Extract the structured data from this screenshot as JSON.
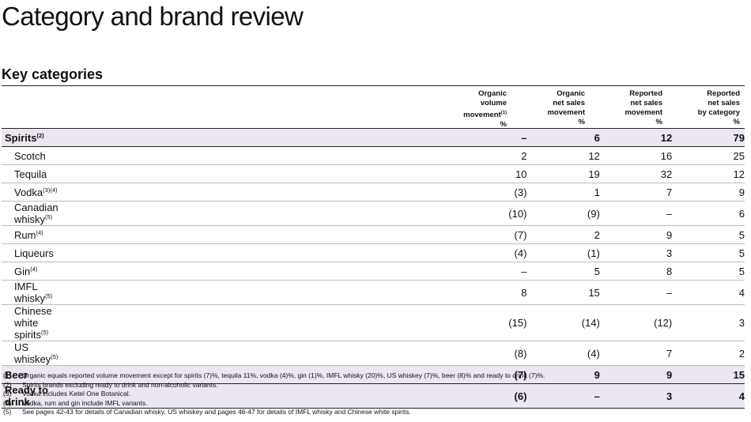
{
  "page_title": "Category and brand review",
  "section_title": "Key categories",
  "columns": [
    "Organic\nvolume\nmovement",
    "Organic\nnet sales\nmovement\n%",
    "Reported\nnet sales\nmovement\n%",
    "Reported\nnet sales\nby category\n%"
  ],
  "col1_note": "(1)",
  "col1_pct": "%",
  "rows": [
    {
      "label": "Spirits",
      "note": "(2)",
      "vals": [
        "–",
        "6",
        "12",
        "79"
      ],
      "bold": true
    },
    {
      "label": "Scotch",
      "note": "",
      "vals": [
        "2",
        "12",
        "16",
        "25"
      ]
    },
    {
      "label": "Tequila",
      "note": "",
      "vals": [
        "10",
        "19",
        "32",
        "12"
      ]
    },
    {
      "label": "Vodka",
      "note": "(3)(4)",
      "vals": [
        "(3)",
        "1",
        "7",
        "9"
      ]
    },
    {
      "label": "Canadian whisky",
      "note": "(5)",
      "vals": [
        "(10)",
        "(9)",
        "–",
        "6"
      ]
    },
    {
      "label": "Rum",
      "note": "(4)",
      "vals": [
        "(7)",
        "2",
        "9",
        "5"
      ]
    },
    {
      "label": "Liqueurs",
      "note": "",
      "vals": [
        "(4)",
        "(1)",
        "3",
        "5"
      ]
    },
    {
      "label": "Gin",
      "note": "(4)",
      "vals": [
        "–",
        "5",
        "8",
        "5"
      ]
    },
    {
      "label": "IMFL whisky",
      "note": "(5)",
      "vals": [
        "8",
        "15",
        "–",
        "4"
      ]
    },
    {
      "label": "Chinese white spirits",
      "note": "(5)",
      "vals": [
        "(15)",
        "(14)",
        "(12)",
        "3"
      ]
    },
    {
      "label": "US whiskey",
      "note": "(5)",
      "vals": [
        "(8)",
        "(4)",
        "7",
        "2"
      ]
    },
    {
      "label": "Beer",
      "note": "",
      "vals": [
        "(7)",
        "9",
        "9",
        "15"
      ],
      "bold": true
    },
    {
      "label": "Ready to drink",
      "note": "",
      "vals": [
        "(6)",
        "–",
        "3",
        "4"
      ],
      "bold": true
    }
  ],
  "footnotes": [
    {
      "num": "(1)",
      "text": "Organic equals reported volume movement except for spirits (7)%, tequila 11%, vodka (4)%, gin (1)%, IMFL whisky (20)%, US whiskey (7)%, beer (8)% and ready to drink (7)%."
    },
    {
      "num": "(2)",
      "text": "Spirits brands excluding ready to drink and non-alcoholic variants."
    },
    {
      "num": "(3)",
      "text": "Vodka includes Ketel One Botanical."
    },
    {
      "num": "(4)",
      "text": "Vodka, rum and gin include IMFL variants."
    },
    {
      "num": "(5)",
      "text": "See pages 42-43 for details of Canadian whisky, US whiskey and pages 46-47 for details of IMFL whisky and Chinese white spirits."
    }
  ]
}
